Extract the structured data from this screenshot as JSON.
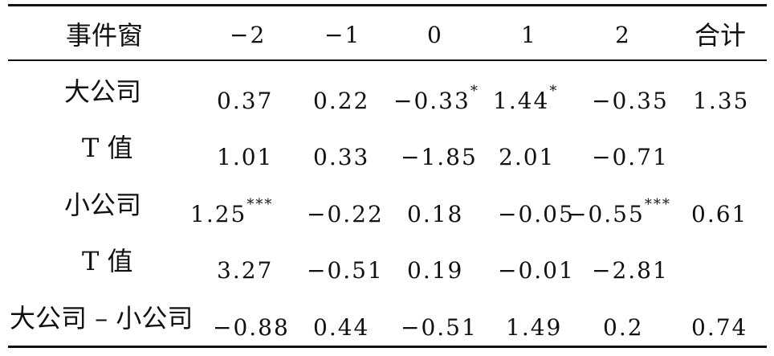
{
  "table": {
    "header": [
      "事件窗",
      "−2",
      "−1",
      "0",
      "1",
      "2",
      "合计"
    ],
    "rows": [
      {
        "label": "大公司",
        "cells": [
          {
            "v": "0.37",
            "s": ""
          },
          {
            "v": "0.22",
            "s": ""
          },
          {
            "v": "−0.33",
            "s": "*"
          },
          {
            "v": "1.44",
            "s": "*"
          },
          {
            "v": "−0.35",
            "s": ""
          },
          {
            "v": "1.35",
            "s": ""
          }
        ]
      },
      {
        "label": "T 值",
        "cells": [
          {
            "v": "1.01",
            "s": ""
          },
          {
            "v": "0.33",
            "s": ""
          },
          {
            "v": "−1.85",
            "s": ""
          },
          {
            "v": "2.01",
            "s": ""
          },
          {
            "v": "−0.71",
            "s": ""
          },
          {
            "v": "",
            "s": ""
          }
        ]
      },
      {
        "label": "小公司",
        "cells": [
          {
            "v": "1.25",
            "s": "***"
          },
          {
            "v": "−0.22",
            "s": ""
          },
          {
            "v": "0.18",
            "s": ""
          },
          {
            "v": "−0.05",
            "s": ""
          },
          {
            "v": "−0.55",
            "s": "***"
          },
          {
            "v": "0.61",
            "s": ""
          }
        ]
      },
      {
        "label": "T 值",
        "cells": [
          {
            "v": "3.27",
            "s": ""
          },
          {
            "v": "−0.51",
            "s": ""
          },
          {
            "v": "0.19",
            "s": ""
          },
          {
            "v": "−0.01",
            "s": ""
          },
          {
            "v": "−2.81",
            "s": ""
          },
          {
            "v": "",
            "s": ""
          }
        ]
      },
      {
        "label": "大公司 – 小公司",
        "cells": [
          {
            "v": "−0.88",
            "s": ""
          },
          {
            "v": "0.44",
            "s": ""
          },
          {
            "v": "−0.51",
            "s": ""
          },
          {
            "v": "1.49",
            "s": ""
          },
          {
            "v": "0.2",
            "s": ""
          },
          {
            "v": "0.74",
            "s": ""
          }
        ]
      }
    ]
  }
}
